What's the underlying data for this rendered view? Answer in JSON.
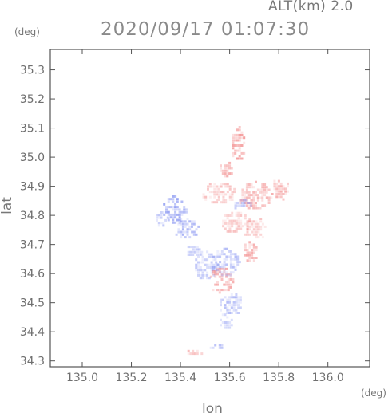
{
  "header": {
    "altitude_label": "ALT(km) 2.0",
    "timestamp": "2020/09/17 01:07:30"
  },
  "chart_data": {
    "type": "heatmap",
    "title": "2020/09/17 01:07:30",
    "subtitle": "ALT(km) 2.0",
    "xlabel": "lon",
    "ylabel": "lat",
    "xunit": "(deg)",
    "yunit": "(deg)",
    "xlim": [
      134.87,
      136.17
    ],
    "ylim": [
      34.28,
      35.37
    ],
    "xticks": [
      "135.0",
      "135.2",
      "135.4",
      "135.6",
      "135.8",
      "136.0"
    ],
    "yticks": [
      "34.3",
      "34.4",
      "34.5",
      "34.6",
      "34.7",
      "34.8",
      "34.9",
      "35.0",
      "35.1",
      "35.2",
      "35.3"
    ],
    "grid": false,
    "colors": {
      "positive": "#f08c8c",
      "negative": "#8c96f0",
      "frame": "#555555"
    },
    "regions": [
      {
        "lon": 135.37,
        "lat": 34.82,
        "rx": 0.05,
        "ry": 0.05,
        "sign": "negative",
        "level": 0.5
      },
      {
        "lon": 135.42,
        "lat": 34.76,
        "rx": 0.05,
        "ry": 0.04,
        "sign": "negative",
        "level": 0.4
      },
      {
        "lon": 135.32,
        "lat": 34.79,
        "rx": 0.03,
        "ry": 0.03,
        "sign": "negative",
        "level": 0.35
      },
      {
        "lon": 135.55,
        "lat": 34.88,
        "rx": 0.07,
        "ry": 0.04,
        "sign": "positive",
        "level": 0.3
      },
      {
        "lon": 135.7,
        "lat": 34.87,
        "rx": 0.07,
        "ry": 0.05,
        "sign": "positive",
        "level": 0.35
      },
      {
        "lon": 135.8,
        "lat": 34.89,
        "rx": 0.04,
        "ry": 0.04,
        "sign": "positive",
        "level": 0.4
      },
      {
        "lon": 135.62,
        "lat": 34.78,
        "rx": 0.06,
        "ry": 0.04,
        "sign": "positive",
        "level": 0.3
      },
      {
        "lon": 135.7,
        "lat": 34.76,
        "rx": 0.05,
        "ry": 0.04,
        "sign": "positive",
        "level": 0.3
      },
      {
        "lon": 135.63,
        "lat": 35.05,
        "rx": 0.03,
        "ry": 0.06,
        "sign": "positive",
        "level": 0.45
      },
      {
        "lon": 135.58,
        "lat": 34.96,
        "rx": 0.03,
        "ry": 0.03,
        "sign": "positive",
        "level": 0.4
      },
      {
        "lon": 135.58,
        "lat": 34.64,
        "rx": 0.06,
        "ry": 0.05,
        "sign": "negative",
        "level": 0.35
      },
      {
        "lon": 135.56,
        "lat": 34.58,
        "rx": 0.05,
        "ry": 0.05,
        "sign": "positive",
        "level": 0.4
      },
      {
        "lon": 135.5,
        "lat": 34.63,
        "rx": 0.05,
        "ry": 0.05,
        "sign": "negative",
        "level": 0.3
      },
      {
        "lon": 135.6,
        "lat": 34.5,
        "rx": 0.05,
        "ry": 0.04,
        "sign": "negative",
        "level": 0.35
      },
      {
        "lon": 135.58,
        "lat": 34.44,
        "rx": 0.03,
        "ry": 0.04,
        "sign": "negative",
        "level": 0.3
      },
      {
        "lon": 135.55,
        "lat": 34.35,
        "rx": 0.04,
        "ry": 0.01,
        "sign": "negative",
        "level": 0.35
      },
      {
        "lon": 135.45,
        "lat": 34.33,
        "rx": 0.04,
        "ry": 0.01,
        "sign": "positive",
        "level": 0.35
      },
      {
        "lon": 135.68,
        "lat": 34.68,
        "rx": 0.03,
        "ry": 0.04,
        "sign": "positive",
        "level": 0.4
      },
      {
        "lon": 135.45,
        "lat": 34.68,
        "rx": 0.04,
        "ry": 0.02,
        "sign": "negative",
        "level": 0.3
      },
      {
        "lon": 135.65,
        "lat": 34.84,
        "rx": 0.04,
        "ry": 0.02,
        "sign": "negative",
        "level": 0.3
      }
    ]
  }
}
